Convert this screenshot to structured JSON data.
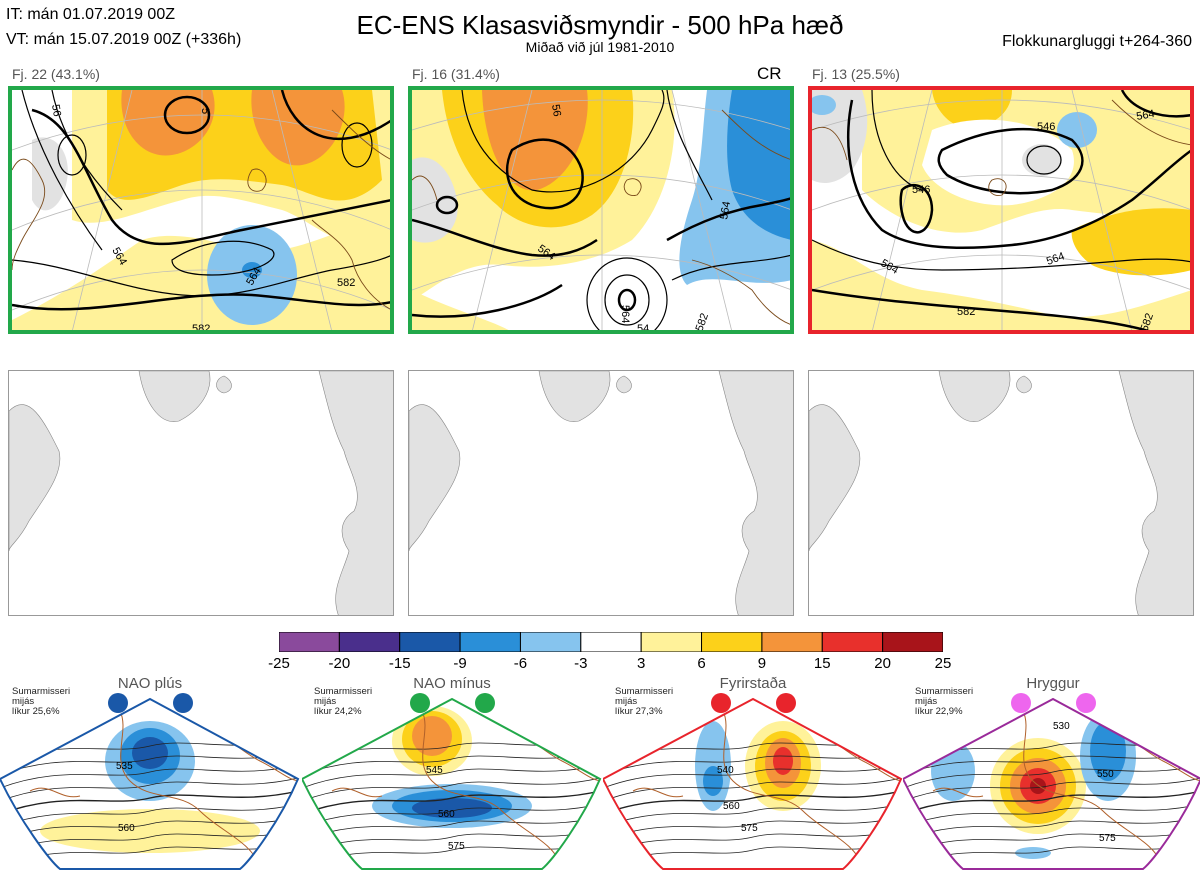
{
  "header": {
    "init_time": "IT: mán 01.07.2019 00Z",
    "valid_time": "VT: mán 15.07.2019 00Z  (+336h)",
    "title": "EC-ENS Klasasviðsmyndir - 500 hPa hæð",
    "subtitle": "Miðað við júl 1981-2010",
    "window": "Flokkunargluggi t+264-360"
  },
  "clusters": [
    {
      "label": "Fj. 22 (43.1%)",
      "members": 22,
      "percent": 43.1,
      "border_color": "#22a84a",
      "tag": "",
      "contour_labels": [
        "564",
        "564",
        "582",
        "582",
        "56",
        "5"
      ]
    },
    {
      "label": "Fj. 16 (31.4%)",
      "members": 16,
      "percent": 31.4,
      "border_color": "#22a84a",
      "tag": "CR",
      "contour_labels": [
        "564",
        "564",
        "56",
        "564",
        "582",
        "54"
      ]
    },
    {
      "label": "Fj. 13 (25.5%)",
      "members": 13,
      "percent": 25.5,
      "border_color": "#e8242c",
      "tag": "",
      "contour_labels": [
        "546",
        "546",
        "564",
        "564",
        "564",
        "582",
        "582"
      ]
    }
  ],
  "colorbar": {
    "ticks": [
      "-25",
      "-20",
      "-15",
      "-9",
      "-6",
      "-3",
      "3",
      "6",
      "9",
      "15",
      "20",
      "25"
    ],
    "colors": [
      "#8a4a9c",
      "#4a2f8c",
      "#1a58a8",
      "#2a8fd8",
      "#86c4ee",
      "#ffffff",
      "#fff29a",
      "#fcd11a",
      "#f4943a",
      "#e8302c",
      "#a8141a"
    ]
  },
  "regimes": [
    {
      "name": "NAO plús",
      "season": "Sumarmisseri",
      "note": "mijás",
      "likelihood": "líkur 25,6%",
      "color": "#1a58a8",
      "contours": [
        "535",
        "560"
      ]
    },
    {
      "name": "NAO mínus",
      "season": "Sumarmisseri",
      "note": "mijás",
      "likelihood": "líkur 24,2%",
      "color": "#22a84a",
      "contours": [
        "545",
        "560",
        "575"
      ]
    },
    {
      "name": "Fyrirstaða",
      "season": "Sumarmisseri",
      "note": "mijás",
      "likelihood": "líkur 27,3%",
      "color": "#e8242c",
      "contours": [
        "540",
        "560",
        "575"
      ]
    },
    {
      "name": "Hryggur",
      "season": "Sumarmisseri",
      "note": "mijás",
      "likelihood": "líkur 22,9%",
      "color": "#9a2a9a",
      "dot_color": "#ee66ee",
      "contours": [
        "530",
        "550",
        "575"
      ]
    }
  ]
}
